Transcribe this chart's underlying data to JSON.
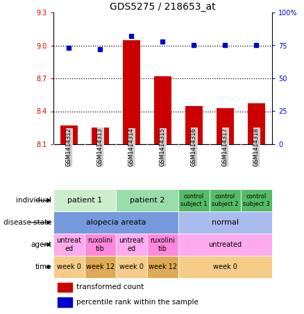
{
  "title": "GDS5275 / 218653_at",
  "samples": [
    "GSM1414312",
    "GSM1414313",
    "GSM1414314",
    "GSM1414315",
    "GSM1414316",
    "GSM1414317",
    "GSM1414318"
  ],
  "bar_values": [
    8.27,
    8.25,
    9.05,
    8.72,
    8.45,
    8.43,
    8.47
  ],
  "dot_values": [
    73,
    72,
    82,
    78,
    75,
    75,
    75
  ],
  "ylim_left": [
    8.1,
    9.3
  ],
  "ylim_right": [
    0,
    100
  ],
  "yticks_left": [
    8.1,
    8.4,
    8.7,
    9.0,
    9.3
  ],
  "yticks_right": [
    0,
    25,
    50,
    75,
    100
  ],
  "hlines": [
    9.0,
    8.7,
    8.4
  ],
  "bar_color": "#cc0000",
  "dot_color": "#0000cc",
  "bar_base": 8.1,
  "row_labels": [
    "individual",
    "disease state",
    "agent",
    "time"
  ],
  "individual_groups": [
    {
      "label": "patient 1",
      "cols": [
        0,
        1
      ],
      "color": "#cceecc",
      "fontsize": 8
    },
    {
      "label": "patient 2",
      "cols": [
        2,
        3
      ],
      "color": "#99ddaa",
      "fontsize": 8
    },
    {
      "label": "control\nsubject 1",
      "cols": [
        4
      ],
      "color": "#55bb66",
      "fontsize": 6
    },
    {
      "label": "control\nsubject 2",
      "cols": [
        5
      ],
      "color": "#55bb66",
      "fontsize": 6
    },
    {
      "label": "control\nsubject 3",
      "cols": [
        6
      ],
      "color": "#55bb66",
      "fontsize": 6
    }
  ],
  "disease_groups": [
    {
      "label": "alopecia areata",
      "cols": [
        0,
        1,
        2,
        3
      ],
      "color": "#7799dd",
      "fontsize": 8
    },
    {
      "label": "normal",
      "cols": [
        4,
        5,
        6
      ],
      "color": "#aabbee",
      "fontsize": 8
    }
  ],
  "agent_groups": [
    {
      "label": "untreat\ned",
      "cols": [
        0
      ],
      "color": "#ffaaee",
      "fontsize": 7
    },
    {
      "label": "ruxolini\ntib",
      "cols": [
        1
      ],
      "color": "#ff88dd",
      "fontsize": 7
    },
    {
      "label": "untreat\ned",
      "cols": [
        2
      ],
      "color": "#ffaaee",
      "fontsize": 7
    },
    {
      "label": "ruxolini\ntib",
      "cols": [
        3
      ],
      "color": "#ff88dd",
      "fontsize": 7
    },
    {
      "label": "untreated",
      "cols": [
        4,
        5,
        6
      ],
      "color": "#ffaaee",
      "fontsize": 7
    }
  ],
  "time_groups": [
    {
      "label": "week 0",
      "cols": [
        0
      ],
      "color": "#f5cc88",
      "fontsize": 7
    },
    {
      "label": "week 12",
      "cols": [
        1
      ],
      "color": "#ddaa55",
      "fontsize": 7
    },
    {
      "label": "week 0",
      "cols": [
        2
      ],
      "color": "#f5cc88",
      "fontsize": 7
    },
    {
      "label": "week 12",
      "cols": [
        3
      ],
      "color": "#ddaa55",
      "fontsize": 7
    },
    {
      "label": "week 0",
      "cols": [
        4,
        5,
        6
      ],
      "color": "#f5cc88",
      "fontsize": 7
    }
  ],
  "sample_header_color": "#cccccc"
}
